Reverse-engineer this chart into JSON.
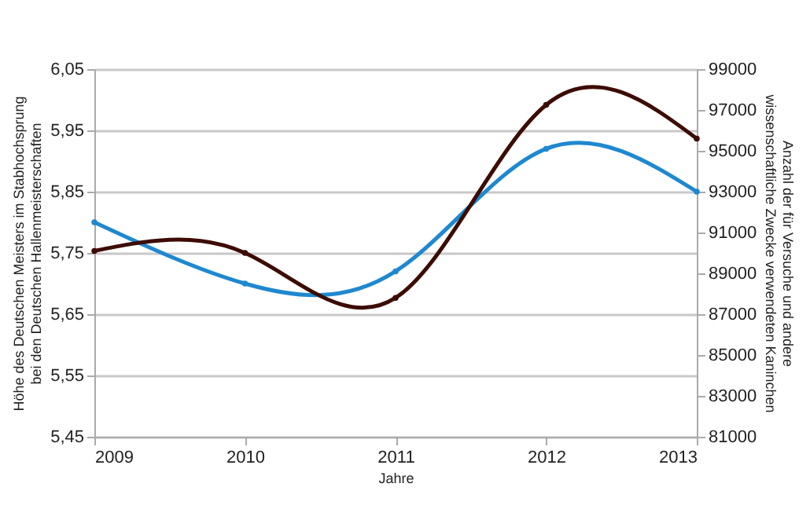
{
  "chart_data": {
    "type": "line",
    "xlabel": "Jahre",
    "ylabel": "Höhe des Deutschen Meisters im Stabhochsprung bei den Deutschen Hallenmeisterschaften",
    "y2label": "Anzahl der für Versuche und andere wissenschaftliche Zwecke verwendeten Kaninchen",
    "categories": [
      "2009",
      "2010",
      "2011",
      "2012",
      "2013"
    ],
    "series": [
      {
        "color": "#1e88d0",
        "values": [
          5.8,
          5.7,
          5.72,
          5.92,
          5.85
        ]
      },
      {
        "color": "#3d0c02",
        "axis": "y2",
        "values": [
          90100,
          90000,
          87800,
          97250,
          95600
        ]
      }
    ],
    "ylim": [
      5.45,
      6.05
    ],
    "yticks": [
      {
        "value": 5.45,
        "label": "5,45"
      },
      {
        "value": 5.55,
        "label": "5,55"
      },
      {
        "value": 5.65,
        "label": "5,65"
      },
      {
        "value": 5.75,
        "label": "5,75"
      },
      {
        "value": 5.85,
        "label": "5,85"
      },
      {
        "value": 5.95,
        "label": "5,95"
      },
      {
        "value": 6.05,
        "label": "6,05"
      }
    ],
    "y2lim": [
      81000,
      99000
    ],
    "y2ticks": [
      81000,
      83000,
      85000,
      87000,
      89000,
      91000,
      93000,
      95000,
      97000,
      99000
    ],
    "grid": "y",
    "marker": "circle",
    "line_style": "solid"
  }
}
